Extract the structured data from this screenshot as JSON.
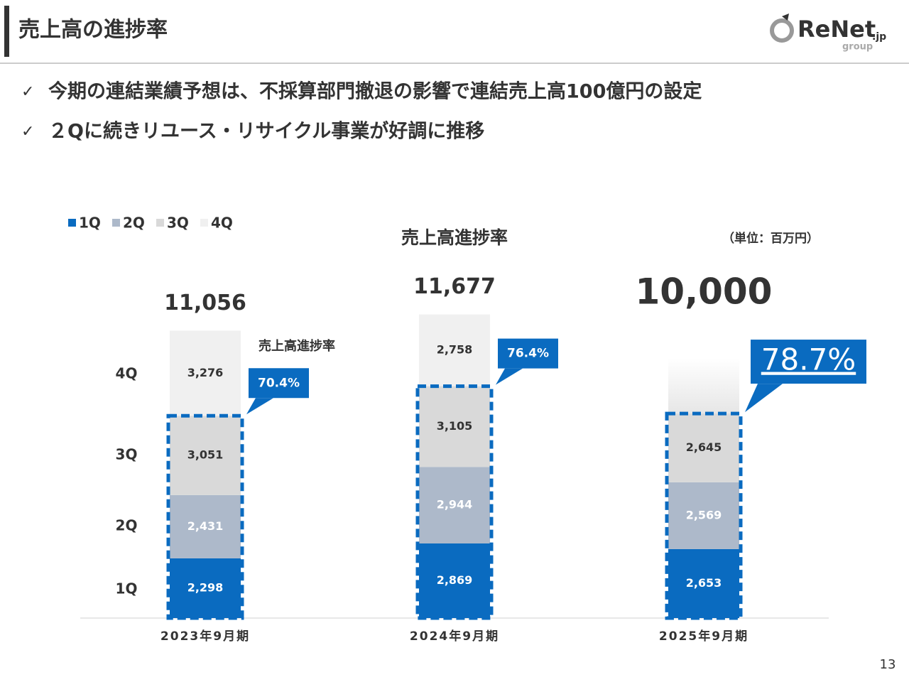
{
  "header": {
    "title": "売上高の進捗率",
    "logo": "ReNet",
    "logo_suffix": ".jp",
    "logo_sub": "group"
  },
  "bullets": [
    "今期の連結業績予想は、不採算部門撤退の影響で連結売上高100億円の設定",
    "２Qに続きリユース・リサイクル事業が好調に推移"
  ],
  "page_number": "13",
  "chart_data": {
    "type": "bar",
    "stacked": true,
    "title": "売上高進捗率",
    "unit_label": "（単位：百万円）",
    "annotation": "売上高進捗率",
    "categories": [
      "2023年9月期",
      "2024年9月期",
      "2025年9月期"
    ],
    "row_labels": [
      "4Q",
      "3Q",
      "2Q",
      "1Q"
    ],
    "series": [
      {
        "name": "1Q",
        "color": "#0a6bc0",
        "values": [
          2298,
          2869,
          2653
        ],
        "value_labels": [
          "2,298",
          "2,869",
          "2,653"
        ]
      },
      {
        "name": "2Q",
        "color": "#adb9ca",
        "values": [
          2431,
          2944,
          2569
        ],
        "value_labels": [
          "2,431",
          "2,944",
          "2,569"
        ]
      },
      {
        "name": "3Q",
        "color": "#d9d9d9",
        "values": [
          3051,
          3105,
          2645
        ],
        "value_labels": [
          "3,051",
          "3,105",
          "2,645"
        ]
      },
      {
        "name": "4Q",
        "color": "#f0f0f0",
        "values": [
          3276,
          2758,
          null
        ],
        "value_labels": [
          "3,276",
          "2,758",
          null
        ]
      }
    ],
    "totals": {
      "values": [
        11056,
        11677,
        10000
      ],
      "value_labels": [
        "11,056",
        "11,677",
        "10,000"
      ]
    },
    "progress": {
      "values": [
        70.4,
        76.4,
        78.7
      ],
      "value_labels": [
        "70.4%",
        "76.4%",
        "78.7%"
      ],
      "color": "#0a6bc0"
    },
    "ylim": [
      0,
      12000
    ]
  }
}
